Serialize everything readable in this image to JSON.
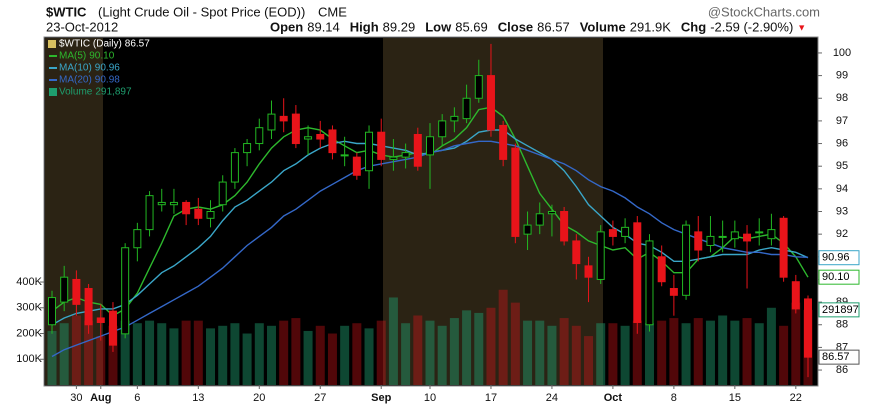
{
  "header": {
    "symbol": "$WTIC",
    "description": "(Light Crude Oil - Spot Price (EOD))",
    "exchange": "CME",
    "date": "23-Oct-2012",
    "source": "@StockCharts.com"
  },
  "quote": [
    {
      "label": "Open",
      "value": "89.14"
    },
    {
      "label": "High",
      "value": "89.29"
    },
    {
      "label": "Low",
      "value": "85.69"
    },
    {
      "label": "Close",
      "value": "86.57"
    },
    {
      "label": "Volume",
      "value": "291.9K"
    },
    {
      "label": "Chg",
      "value": "-2.59 (-2.90%)",
      "marker": "▼"
    }
  ],
  "chart_data": {
    "type": "candlestick",
    "title": "$WTIC (Daily)",
    "categories": [
      null,
      null,
      "30",
      null,
      "Aug",
      null,
      null,
      "6",
      null,
      null,
      null,
      null,
      "13",
      null,
      null,
      null,
      null,
      "20",
      null,
      null,
      null,
      null,
      "27",
      null,
      null,
      null,
      null,
      "Sep",
      null,
      null,
      null,
      "10",
      null,
      null,
      null,
      null,
      "17",
      null,
      null,
      null,
      null,
      "24",
      null,
      null,
      null,
      null,
      "Oct",
      null,
      null,
      null,
      null,
      "8",
      null,
      null,
      null,
      null,
      "15",
      null,
      null,
      null,
      null,
      "22",
      null
    ],
    "open": [
      88.0,
      89.0,
      90.0,
      89.6,
      88.3,
      88.6,
      87.6,
      91.4,
      92.2,
      93.3,
      93.3,
      93.4,
      93.1,
      92.7,
      93.3,
      94.3,
      95.6,
      96.0,
      96.6,
      97.2,
      97.3,
      96.2,
      96.4,
      96.6,
      95.5,
      95.4,
      94.8,
      96.5,
      95.3,
      95.4,
      96.4,
      95.5,
      96.3,
      97.0,
      97.1,
      98.0,
      99.0,
      96.8,
      95.8,
      92.0,
      92.4,
      92.9,
      93.0,
      91.7,
      90.6,
      90.0,
      92.2,
      91.9,
      92.5,
      88.0,
      91.0,
      89.6,
      89.3,
      92.1,
      91.5,
      91.9,
      91.8,
      92.0,
      92.1,
      91.8,
      92.7,
      89.9,
      89.14
    ],
    "high": [
      89.5,
      90.6,
      90.4,
      89.8,
      88.9,
      89.0,
      91.6,
      92.5,
      93.9,
      94.0,
      94.0,
      93.5,
      93.6,
      93.5,
      94.6,
      95.8,
      96.2,
      97.1,
      97.9,
      98.0,
      97.7,
      96.8,
      97.0,
      96.8,
      96.3,
      95.6,
      96.8,
      97.1,
      96.2,
      96.0,
      96.7,
      96.9,
      97.3,
      97.6,
      98.6,
      99.7,
      100.4,
      97.0,
      96.0,
      93.0,
      93.4,
      93.3,
      93.2,
      92.0,
      91.0,
      92.4,
      92.6,
      92.7,
      92.8,
      92.0,
      91.5,
      90.2,
      92.6,
      92.8,
      92.8,
      92.6,
      92.6,
      92.4,
      92.7,
      92.9,
      92.8,
      90.2,
      89.29
    ],
    "low": [
      87.6,
      88.6,
      88.4,
      87.6,
      87.3,
      86.8,
      87.4,
      90.8,
      91.9,
      93.0,
      92.9,
      92.4,
      92.4,
      92.3,
      93.0,
      94.0,
      95.0,
      95.7,
      96.2,
      96.5,
      95.8,
      95.5,
      95.8,
      95.3,
      95.0,
      94.4,
      94.0,
      95.0,
      94.8,
      94.9,
      94.8,
      94.0,
      95.9,
      96.5,
      96.9,
      97.8,
      96.3,
      95.0,
      91.6,
      91.3,
      92.0,
      91.9,
      91.5,
      90.0,
      89.0,
      89.8,
      91.5,
      91.6,
      87.6,
      87.7,
      89.7,
      88.4,
      89.1,
      90.8,
      91.2,
      91.2,
      91.4,
      89.6,
      91.5,
      91.5,
      89.9,
      88.5,
      85.69
    ],
    "close": [
      89.2,
      90.1,
      88.9,
      88.0,
      88.1,
      87.1,
      91.4,
      92.2,
      93.7,
      93.4,
      93.4,
      92.9,
      92.7,
      93.0,
      94.3,
      95.6,
      96.0,
      96.7,
      97.3,
      97.0,
      96.0,
      96.3,
      96.2,
      95.6,
      95.5,
      94.6,
      96.5,
      95.3,
      95.4,
      95.6,
      95.0,
      96.3,
      97.0,
      97.2,
      98.0,
      99.0,
      96.6,
      95.3,
      91.9,
      92.4,
      92.9,
      93.0,
      91.7,
      90.7,
      90.1,
      92.1,
      91.9,
      92.3,
      88.1,
      91.7,
      89.9,
      89.3,
      92.4,
      91.3,
      91.9,
      91.9,
      92.1,
      91.7,
      92.1,
      92.2,
      90.1,
      88.7,
      86.57
    ],
    "up_color": "#22b722",
    "down_color": "#e8141a",
    "ylim": [
      85.34,
      100.66
    ],
    "yticks": [
      86,
      87,
      88,
      89,
      90,
      91,
      92,
      93,
      94,
      95,
      96,
      97,
      98,
      99,
      100
    ],
    "volume": {
      "name": "Volume",
      "value_label": "291,897",
      "color": "#1e9e6e",
      "values": [
        210000,
        240000,
        270000,
        250000,
        190000,
        230000,
        250000,
        240000,
        250000,
        240000,
        220000,
        250000,
        250000,
        220000,
        230000,
        240000,
        200000,
        240000,
        230000,
        250000,
        260000,
        210000,
        230000,
        200000,
        230000,
        240000,
        220000,
        250000,
        340000,
        240000,
        270000,
        250000,
        230000,
        260000,
        290000,
        280000,
        300000,
        370000,
        320000,
        250000,
        250000,
        230000,
        260000,
        230000,
        190000,
        240000,
        240000,
        230000,
        250000,
        240000,
        250000,
        260000,
        240000,
        260000,
        250000,
        270000,
        250000,
        260000,
        240000,
        300000,
        230000,
        320000,
        291897
      ],
      "ylim": [
        0,
        1348000
      ],
      "yticks": [
        {
          "value": 100000,
          "label": "100K"
        },
        {
          "value": 200000,
          "label": "200K"
        },
        {
          "value": 300000,
          "label": "300K"
        },
        {
          "value": 400000,
          "label": "400K"
        }
      ]
    },
    "overlays": [
      {
        "name": "MA(5)",
        "color": "#2db82d",
        "value_label": "90.10",
        "values": [
          88.6,
          89.0,
          89.2,
          89.0,
          88.9,
          88.4,
          88.7,
          89.4,
          90.5,
          91.6,
          92.8,
          93.1,
          93.2,
          93.1,
          93.3,
          93.7,
          94.3,
          95.1,
          95.8,
          96.3,
          96.6,
          96.7,
          96.6,
          96.2,
          95.9,
          95.6,
          95.7,
          95.5,
          95.4,
          95.5,
          95.6,
          95.5,
          95.9,
          96.2,
          96.7,
          97.5,
          97.6,
          97.2,
          96.2,
          95.0,
          93.8,
          93.1,
          92.4,
          92.1,
          91.7,
          91.5,
          91.3,
          91.4,
          90.9,
          91.2,
          90.8,
          90.3,
          90.3,
          90.9,
          91.0,
          91.4,
          91.9,
          91.8,
          91.9,
          92.0,
          91.6,
          91.0,
          90.1
        ]
      },
      {
        "name": "MA(10)",
        "color": "#3aa6c8",
        "value_label": "90.96",
        "values": [
          88.0,
          88.3,
          88.5,
          88.6,
          88.7,
          88.7,
          88.9,
          89.3,
          89.8,
          90.3,
          90.6,
          91.0,
          91.4,
          91.9,
          92.6,
          93.2,
          93.5,
          93.9,
          94.3,
          94.8,
          95.1,
          95.5,
          95.8,
          96.0,
          96.1,
          96.0,
          96.0,
          95.9,
          95.8,
          95.7,
          95.5,
          95.6,
          95.7,
          95.8,
          96.1,
          96.5,
          96.6,
          96.6,
          96.2,
          95.9,
          95.6,
          95.3,
          94.8,
          94.1,
          93.3,
          92.8,
          92.3,
          92.0,
          91.6,
          91.5,
          91.2,
          90.8,
          90.8,
          90.9,
          91.0,
          91.1,
          91.1,
          91.1,
          91.3,
          91.4,
          91.3,
          91.2,
          90.96
        ]
      },
      {
        "name": "MA(20)",
        "color": "#3468c8",
        "value_label": "90.98",
        "values": [
          86.6,
          86.9,
          87.1,
          87.3,
          87.5,
          87.7,
          87.9,
          88.2,
          88.5,
          88.8,
          89.1,
          89.4,
          89.7,
          90.1,
          90.5,
          91.0,
          91.5,
          91.9,
          92.3,
          92.8,
          93.1,
          93.5,
          93.9,
          94.2,
          94.5,
          94.8,
          95.0,
          95.1,
          95.2,
          95.3,
          95.4,
          95.6,
          95.7,
          95.9,
          96.0,
          96.1,
          96.1,
          96.0,
          95.9,
          95.7,
          95.5,
          95.3,
          95.1,
          94.8,
          94.4,
          94.1,
          93.9,
          93.6,
          93.2,
          92.9,
          92.5,
          92.2,
          92.0,
          91.8,
          91.6,
          91.4,
          91.3,
          91.2,
          91.2,
          91.1,
          91.1,
          91.0,
          90.98
        ]
      }
    ]
  }
}
